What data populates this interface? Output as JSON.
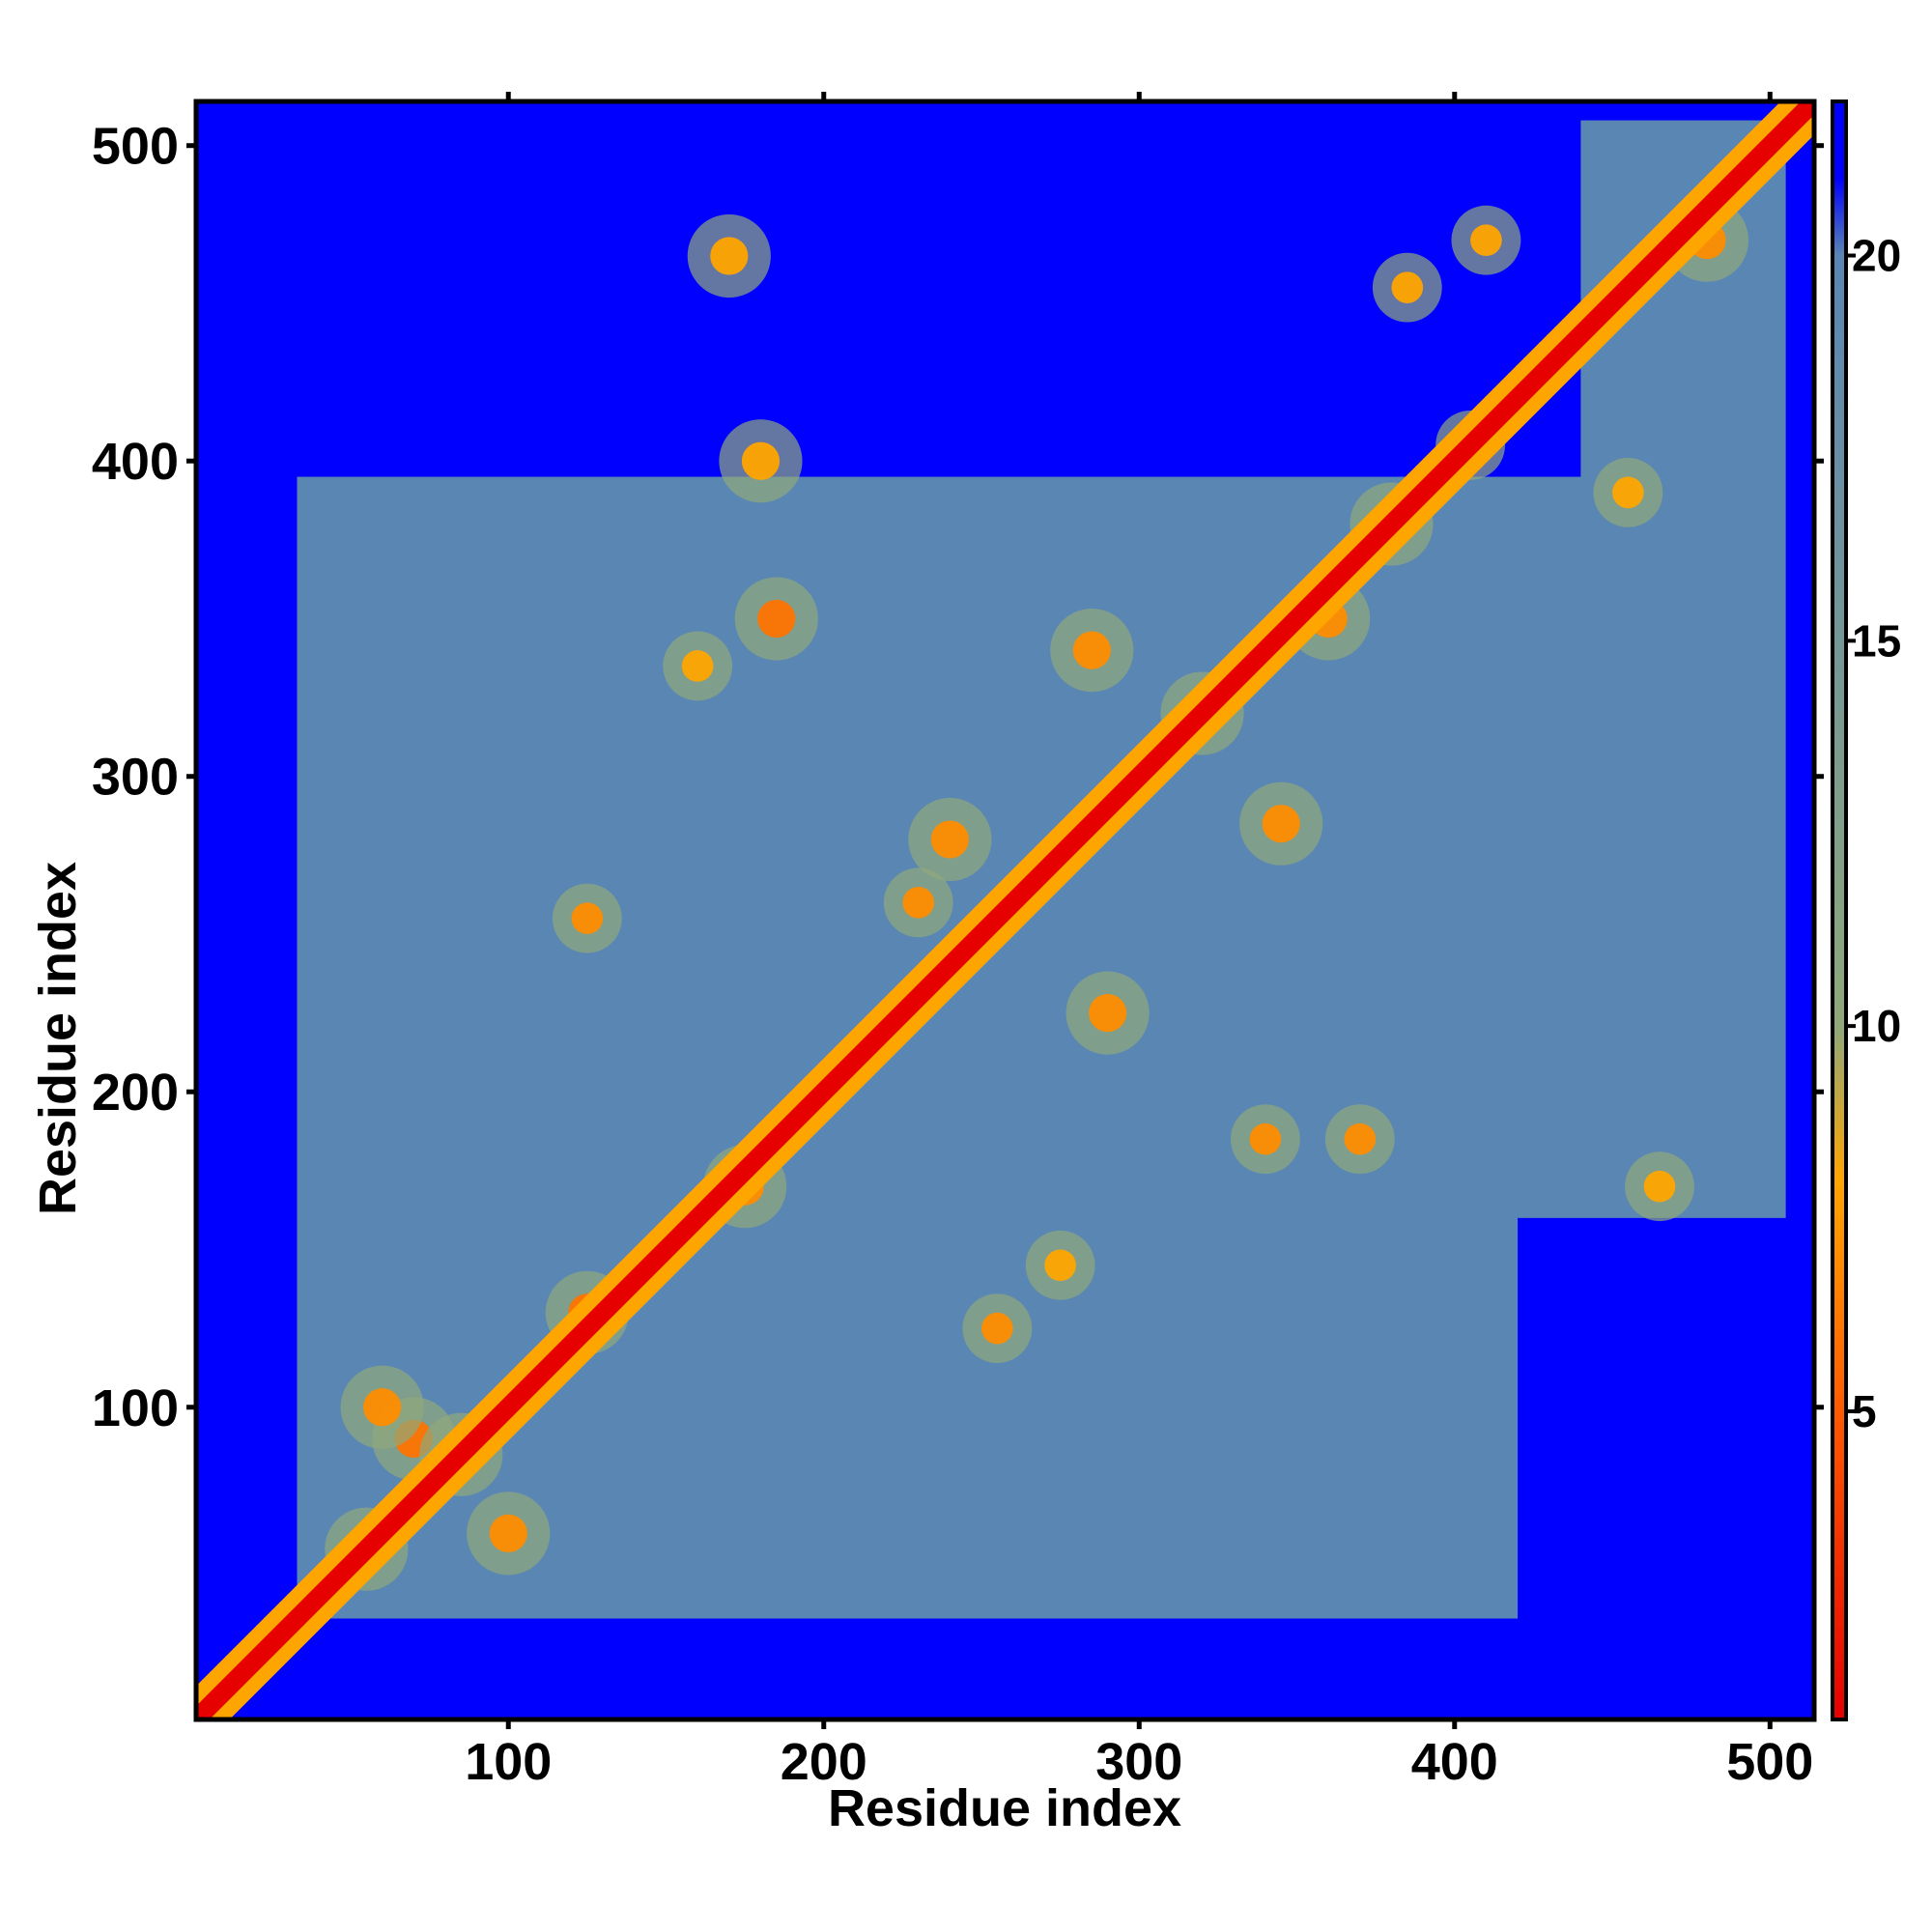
{
  "chart_data": {
    "type": "heatmap",
    "title": "",
    "xlabel": "Residue index",
    "ylabel": "Residue index",
    "xlim": [
      1,
      514
    ],
    "ylim": [
      1,
      514
    ],
    "x_ticks": [
      100,
      200,
      300,
      400,
      500
    ],
    "y_ticks": [
      100,
      200,
      300,
      400,
      500
    ],
    "n_residues": 514,
    "colorbar": {
      "range": [
        1,
        22
      ],
      "ticks": [
        5,
        10,
        15,
        20
      ],
      "colors": [
        {
          "value": 1,
          "color": "#e60000"
        },
        {
          "value": 5,
          "color": "#ff5a00"
        },
        {
          "value": 8,
          "color": "#ffa500"
        },
        {
          "value": 10,
          "color": "#8fa87a"
        },
        {
          "value": 20,
          "color": "#5a86b4"
        },
        {
          "value": 21,
          "color": "#0000ff"
        }
      ]
    },
    "diagonal_value": 1,
    "background_value": 22,
    "medium_value": 20,
    "grid": false,
    "legend": "colorbar-right",
    "medium_region": {
      "x_range": [
        33,
        508
      ],
      "y_range": [
        33,
        508
      ],
      "note_regions": [
        {
          "x": [
            30,
            500
          ],
          "y": [
            30,
            510
          ]
        }
      ]
    },
    "blue_empty_regions": [
      {
        "x": [
          1,
          440
        ],
        "y": [
          395,
          514
        ]
      },
      {
        "x": [
          1,
          28
        ],
        "y": [
          28,
          514
        ]
      },
      {
        "x": [
          1,
          514
        ],
        "y": [
          1,
          28
        ]
      },
      {
        "x": [
          420,
          514
        ],
        "y": [
          1,
          160
        ]
      },
      {
        "x": [
          505,
          514
        ],
        "y": [
          1,
          514
        ]
      }
    ],
    "contacts": [
      {
        "x": 55,
        "y": 55,
        "v": 7,
        "r": 6
      },
      {
        "x": 70,
        "y": 90,
        "v": 6,
        "r": 6
      },
      {
        "x": 85,
        "y": 85,
        "v": 6,
        "r": 6
      },
      {
        "x": 100,
        "y": 60,
        "v": 7,
        "r": 6
      },
      {
        "x": 60,
        "y": 100,
        "v": 7,
        "r": 6
      },
      {
        "x": 125,
        "y": 130,
        "v": 6,
        "r": 6
      },
      {
        "x": 175,
        "y": 170,
        "v": 7,
        "r": 6
      },
      {
        "x": 170,
        "y": 465,
        "v": 8,
        "r": 6
      },
      {
        "x": 180,
        "y": 400,
        "v": 8,
        "r": 6
      },
      {
        "x": 185,
        "y": 350,
        "v": 6,
        "r": 6
      },
      {
        "x": 160,
        "y": 335,
        "v": 8,
        "r": 5
      },
      {
        "x": 125,
        "y": 255,
        "v": 7,
        "r": 5
      },
      {
        "x": 240,
        "y": 280,
        "v": 7,
        "r": 6
      },
      {
        "x": 230,
        "y": 260,
        "v": 7,
        "r": 5
      },
      {
        "x": 290,
        "y": 225,
        "v": 7,
        "r": 6
      },
      {
        "x": 255,
        "y": 125,
        "v": 7,
        "r": 5
      },
      {
        "x": 275,
        "y": 145,
        "v": 8,
        "r": 5
      },
      {
        "x": 285,
        "y": 340,
        "v": 7,
        "r": 6
      },
      {
        "x": 320,
        "y": 320,
        "v": 7,
        "r": 6
      },
      {
        "x": 345,
        "y": 285,
        "v": 7,
        "r": 6
      },
      {
        "x": 340,
        "y": 185,
        "v": 7,
        "r": 5
      },
      {
        "x": 370,
        "y": 185,
        "v": 7,
        "r": 5
      },
      {
        "x": 380,
        "y": 380,
        "v": 6,
        "r": 6
      },
      {
        "x": 405,
        "y": 405,
        "v": 7,
        "r": 5
      },
      {
        "x": 360,
        "y": 350,
        "v": 7,
        "r": 6
      },
      {
        "x": 480,
        "y": 470,
        "v": 7,
        "r": 6
      },
      {
        "x": 465,
        "y": 170,
        "v": 8,
        "r": 5
      },
      {
        "x": 410,
        "y": 470,
        "v": 8,
        "r": 5
      },
      {
        "x": 455,
        "y": 390,
        "v": 8,
        "r": 5
      },
      {
        "x": 385,
        "y": 455,
        "v": 8,
        "r": 5
      }
    ]
  }
}
